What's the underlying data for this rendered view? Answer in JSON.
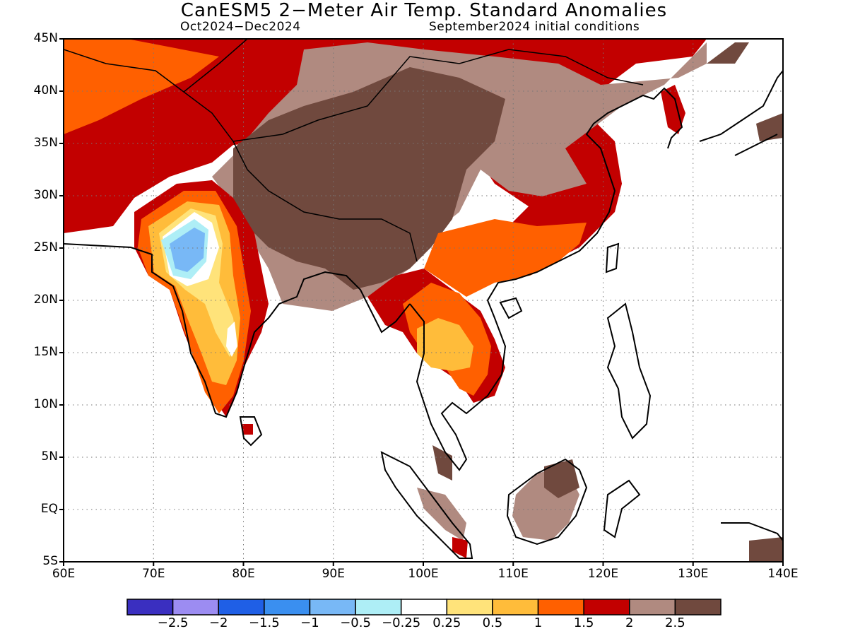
{
  "title": "CanESM5 2−Meter Air Temp. Standard Anomalies",
  "subtitle_left": "Oct2024−Dec2024",
  "subtitle_right": "September2024 initial conditions",
  "map": {
    "lon_range": [
      60,
      140
    ],
    "lat_range": [
      -5,
      45
    ],
    "lat_ticks": [
      "45N",
      "40N",
      "35N",
      "30N",
      "25N",
      "20N",
      "15N",
      "10N",
      "5N",
      "EQ",
      "5S"
    ],
    "lon_ticks": [
      "60E",
      "70E",
      "80E",
      "90E",
      "100E",
      "110E",
      "120E",
      "130E",
      "140E"
    ],
    "grid": "dotted"
  },
  "colorbar": {
    "labels": [
      "−2.5",
      "−2",
      "−1.5",
      "−1",
      "−0.5",
      "−0.25",
      "0.25",
      "0.5",
      "1",
      "1.5",
      "2",
      "2.5"
    ],
    "colors": [
      "#3a2fc0",
      "#9c8cf2",
      "#1f5fe6",
      "#3a8ff0",
      "#78b8f6",
      "#aeeef6",
      "#ffffff",
      "#ffe37a",
      "#ffbc3a",
      "#ff6000",
      "#c20000",
      "#b08a80",
      "#70493e"
    ]
  }
}
